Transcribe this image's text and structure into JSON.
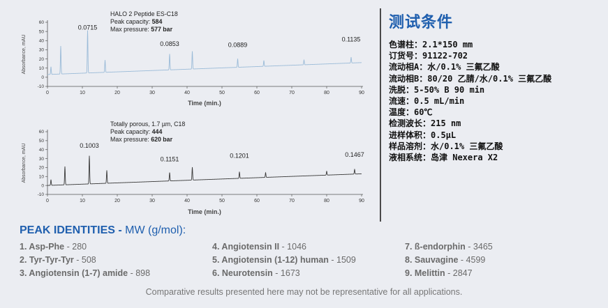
{
  "chart_data": [
    {
      "type": "line",
      "title_lines": [
        "HALO 2 Peptide ES-C18",
        "Peak capacity: ",
        "Max pressure: "
      ],
      "title_values": [
        "",
        "584",
        "577 bar"
      ],
      "xlabel": "Time (min.)",
      "ylabel": "Absorbance, mAU",
      "xlim": [
        0,
        90
      ],
      "ylim": [
        -10,
        60
      ],
      "xticks": [
        0,
        10,
        20,
        30,
        40,
        50,
        60,
        70,
        80,
        90
      ],
      "yticks": [
        -10,
        0,
        10,
        20,
        30,
        40,
        50,
        60
      ],
      "line_color": "#9bbbd8",
      "baseline": {
        "x": [
          0,
          90
        ],
        "y": [
          3,
          16
        ]
      },
      "peaks": [
        {
          "t": 1.0,
          "h": 8
        },
        {
          "t": 3.8,
          "h": 30
        },
        {
          "t": 11.5,
          "h": 46
        },
        {
          "t": 16.5,
          "h": 13
        },
        {
          "t": 35.0,
          "h": 17
        },
        {
          "t": 41.5,
          "h": 19
        },
        {
          "t": 54.5,
          "h": 9
        },
        {
          "t": 62.0,
          "h": 6
        },
        {
          "t": 73.5,
          "h": 5
        },
        {
          "t": 87.0,
          "h": 6
        }
      ],
      "annotations": [
        {
          "text": "0.0715",
          "x": 11.5,
          "y": 52
        },
        {
          "text": "0.0853",
          "x": 35.0,
          "y": 34
        },
        {
          "text": "0.0889",
          "x": 54.5,
          "y": 33
        },
        {
          "text": "0.1135",
          "x": 87.0,
          "y": 39
        }
      ]
    },
    {
      "type": "line",
      "title_lines": [
        "Totally porous, 1.7 µm, C18",
        "Peak capacity: ",
        "Max pressure: "
      ],
      "title_values": [
        "",
        "444",
        "620 bar"
      ],
      "xlabel": "Time (min.)",
      "ylabel": "Absorbance, mAU",
      "xlim": [
        0,
        90
      ],
      "ylim": [
        -10,
        60
      ],
      "xticks": [
        0,
        10,
        20,
        30,
        40,
        50,
        60,
        70,
        80,
        90
      ],
      "yticks": [
        -10,
        0,
        10,
        20,
        30,
        40,
        50,
        60
      ],
      "line_color": "#3a3a3a",
      "baseline": {
        "x": [
          0,
          90
        ],
        "y": [
          0,
          13
        ]
      },
      "peaks": [
        {
          "t": 1.0,
          "h": 6
        },
        {
          "t": 5.0,
          "h": 20
        },
        {
          "t": 12.0,
          "h": 31
        },
        {
          "t": 17.0,
          "h": 14
        },
        {
          "t": 35.0,
          "h": 9
        },
        {
          "t": 41.5,
          "h": 14
        },
        {
          "t": 55.0,
          "h": 7
        },
        {
          "t": 62.5,
          "h": 5
        },
        {
          "t": 80.0,
          "h": 4
        },
        {
          "t": 88.0,
          "h": 5
        }
      ],
      "annotations": [
        {
          "text": "0.1003",
          "x": 12.0,
          "y": 42
        },
        {
          "text": "0.1151",
          "x": 35.0,
          "y": 27
        },
        {
          "text": "0.1201",
          "x": 55.0,
          "y": 31
        },
        {
          "text": "0.1467",
          "x": 88.0,
          "y": 32
        }
      ]
    }
  ],
  "conditions": {
    "title": "测试条件",
    "lines": [
      "色谱柱：2.1*150 mm",
      "订货号：91122-702",
      "流动相A：水/0.1% 三氟乙酸",
      "流动相B：80/20 乙腈/水/0.1% 三氟乙酸",
      "洗脱：5-50% B 90 min",
      "流速：0.5 mL/min",
      "温度：60℃",
      "检测波长：215 nm",
      "进样体积：0.5μL",
      "样品溶剂：水/0.1% 三氟乙酸",
      "液相系统：岛津 Nexera X2"
    ]
  },
  "peak_identities": {
    "header_strong": "PEAK IDENTITIES - ",
    "header_rest": "MW (g/mol):",
    "columns": [
      [
        {
          "name": "1. Asp-Phe",
          "mw": " - 280"
        },
        {
          "name": "2. Tyr-Tyr-Tyr",
          "mw": " - 508"
        },
        {
          "name": "3. Angiotensin (1-7) amide",
          "mw": " - 898"
        }
      ],
      [
        {
          "name": "4. Angiotensin II",
          "mw": " - 1046"
        },
        {
          "name": "5. Angiotensin (1-12) human",
          "mw": " - 1509"
        },
        {
          "name": "6. Neurotensin",
          "mw": " - 1673"
        }
      ],
      [
        {
          "name": "7. ß-endorphin",
          "mw": " - 3465"
        },
        {
          "name": "8. Sauvagine",
          "mw": " - 4599"
        },
        {
          "name": "9. Melittin",
          "mw": " - 2847"
        }
      ]
    ]
  },
  "footnote": "Comparative results presented here may not be representative for all applications.",
  "colors": {
    "accent": "#1f5fae",
    "text_gray": "#6a6a6a",
    "background": "#ebedf2"
  }
}
